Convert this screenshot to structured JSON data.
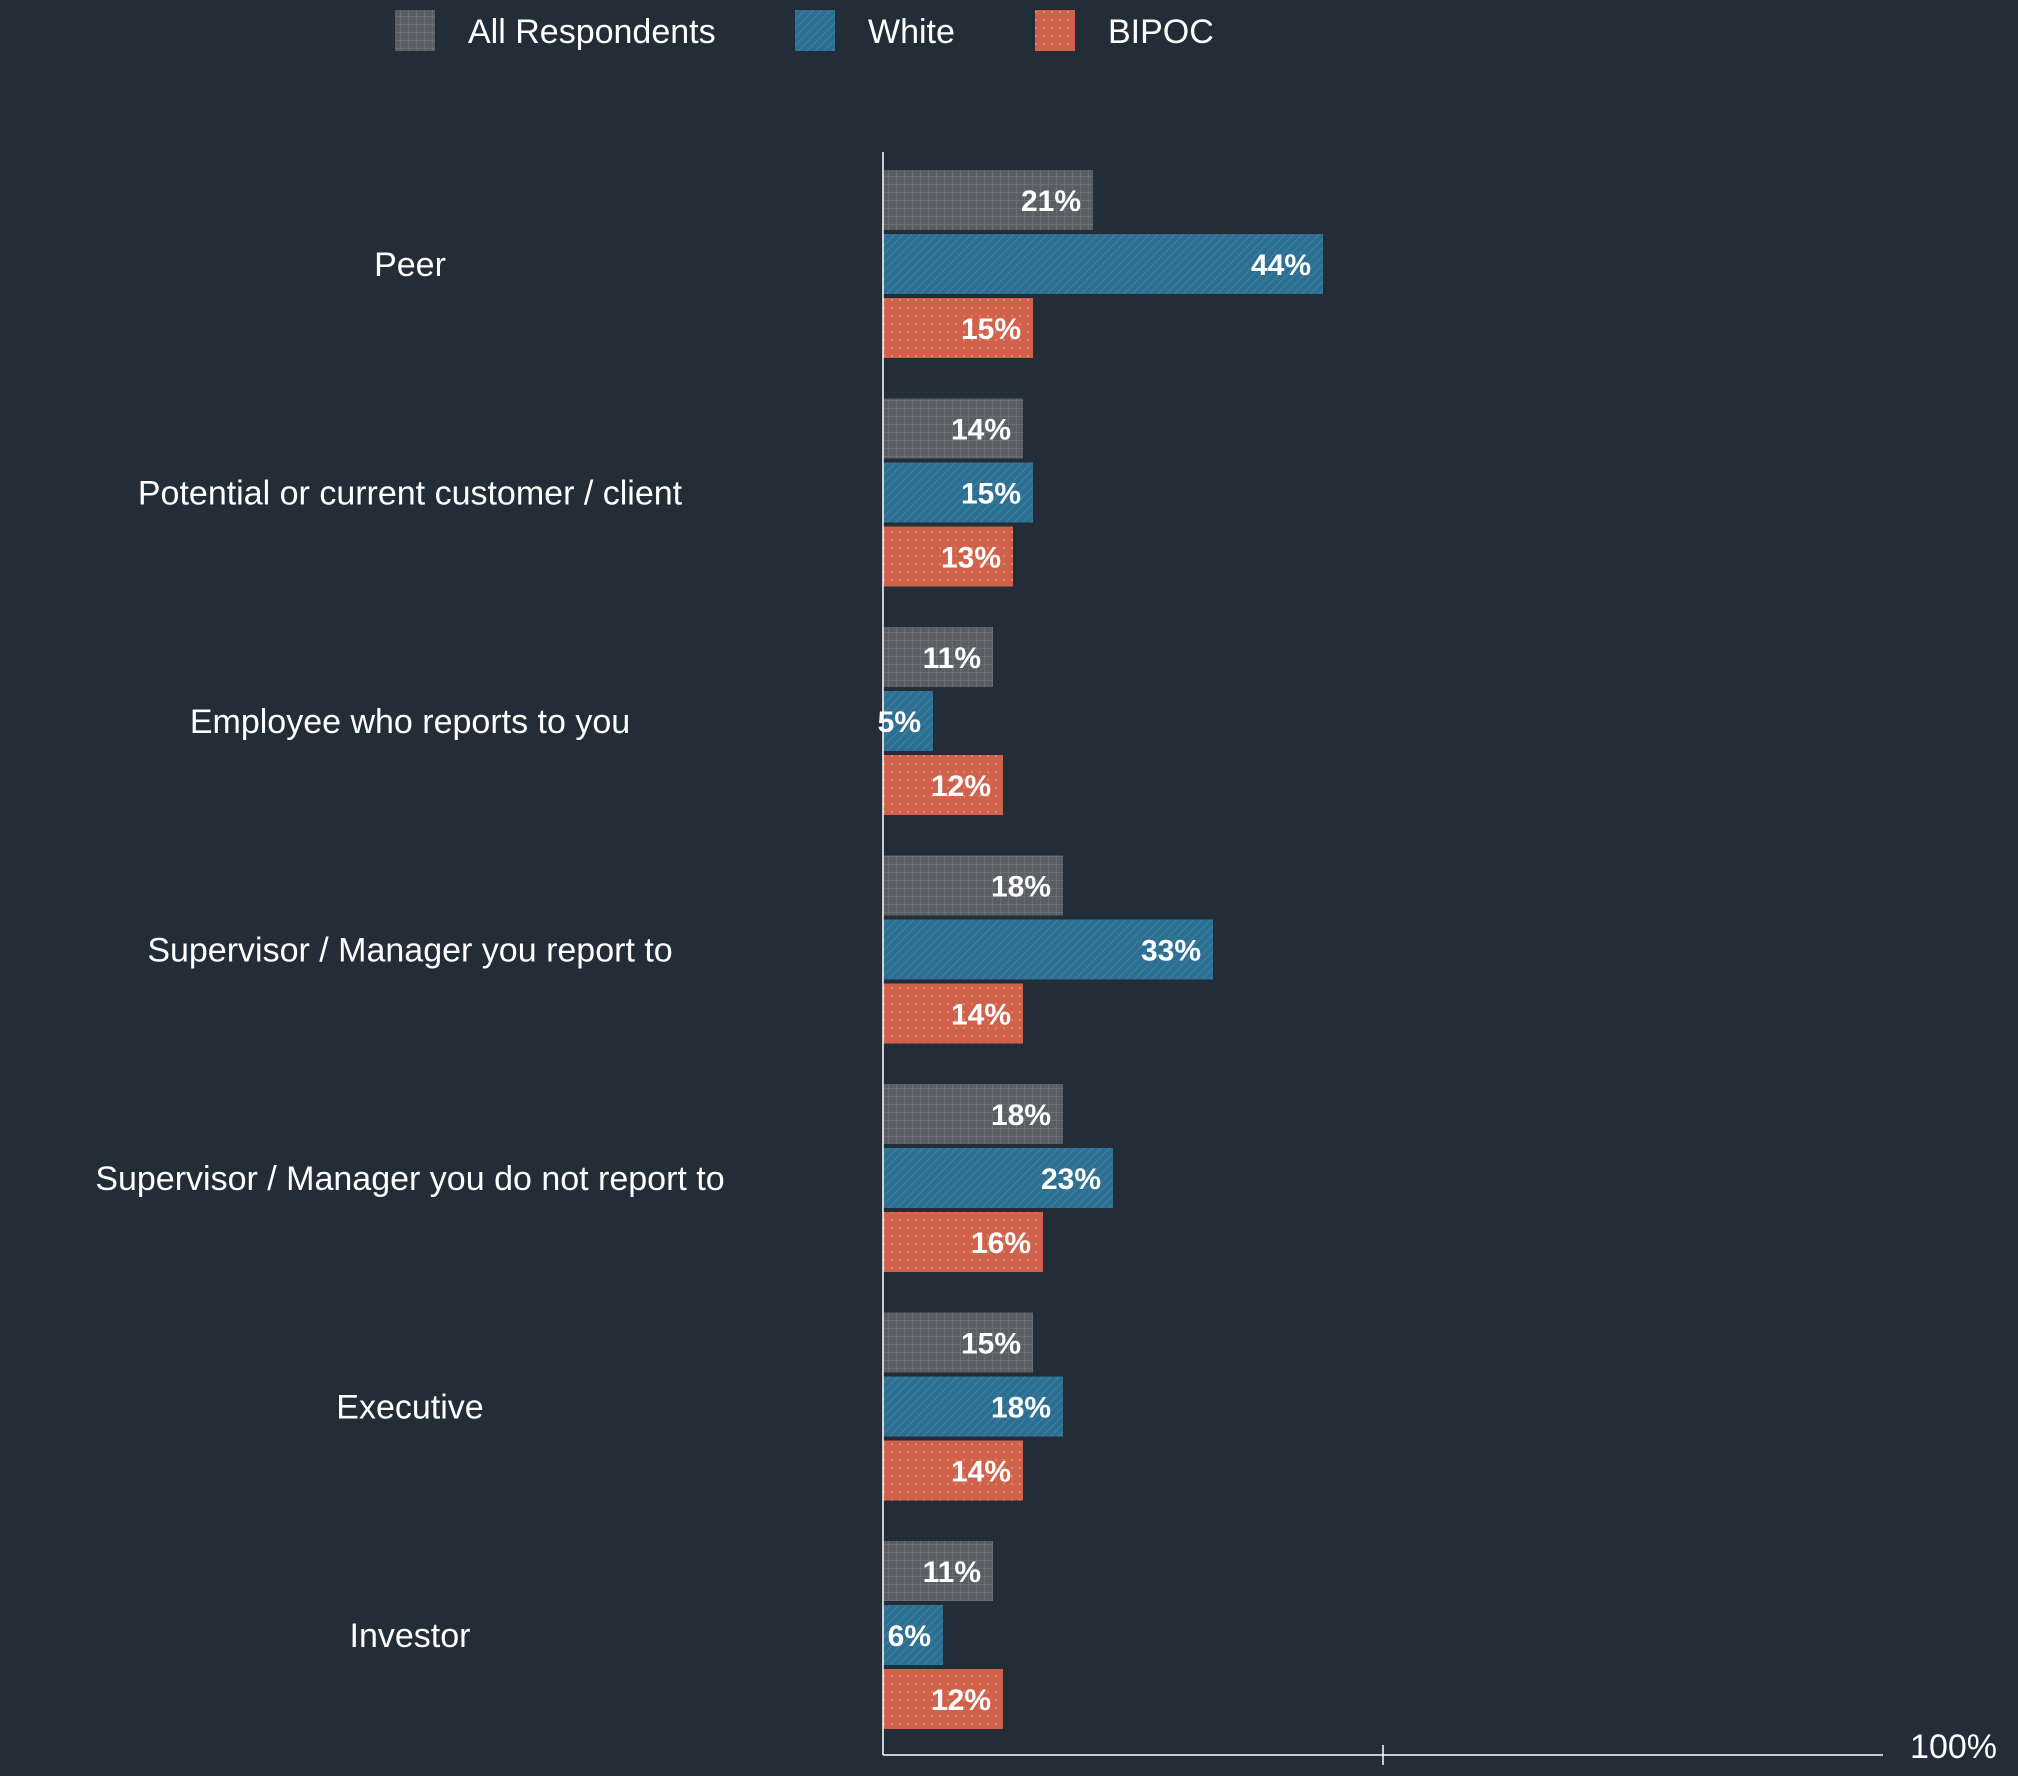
{
  "chart_data": {
    "type": "bar",
    "orientation": "horizontal",
    "categories": [
      "Peer",
      "Potential or current customer / client",
      "Employee who reports to you",
      "Supervisor / Manager you report to",
      "Supervisor / Manager you do not report to",
      "Executive",
      "Investor"
    ],
    "series": [
      {
        "name": "All Respondents",
        "color": "#5a5d61",
        "values": [
          21,
          14,
          11,
          18,
          18,
          15,
          11
        ],
        "labels": [
          "21%",
          "14%",
          "11%",
          "18%",
          "18%",
          "15%",
          "11%"
        ]
      },
      {
        "name": "White",
        "color": "#2d6f91",
        "values": [
          44,
          15,
          5,
          33,
          23,
          18,
          6
        ],
        "labels": [
          "44%",
          "15%",
          "5%",
          "33%",
          "23%",
          "18%",
          "6%"
        ]
      },
      {
        "name": "BIPOC",
        "color": "#d0624b",
        "values": [
          15,
          13,
          12,
          14,
          16,
          14,
          12
        ],
        "labels": [
          "15%",
          "13%",
          "12%",
          "14%",
          "16%",
          "14%",
          "12%"
        ]
      }
    ],
    "xlim": [
      0,
      100
    ],
    "x_tick_label": "100%",
    "legend_position": "top",
    "grid": false
  }
}
